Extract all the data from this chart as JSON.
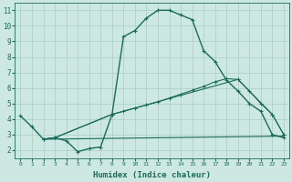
{
  "xlabel": "Humidex (Indice chaleur)",
  "bg_color": "#cce8e0",
  "grid_color": "#aacccc",
  "line_color": "#1a6b5a",
  "xlim": [
    -0.5,
    23.5
  ],
  "ylim": [
    1.5,
    11.5
  ],
  "xticks": [
    0,
    1,
    2,
    3,
    4,
    5,
    6,
    7,
    8,
    9,
    10,
    11,
    12,
    13,
    14,
    15,
    16,
    17,
    18,
    19,
    20,
    21,
    22,
    23
  ],
  "yticks": [
    2,
    3,
    4,
    5,
    6,
    7,
    8,
    9,
    10,
    11
  ],
  "line1_x": [
    0,
    1,
    2,
    3,
    4,
    5,
    6,
    7,
    8,
    9,
    10,
    11,
    12,
    13,
    14,
    15,
    16,
    17,
    18,
    19,
    20,
    21,
    22,
    23
  ],
  "line1_y": [
    4.2,
    3.5,
    2.7,
    2.8,
    2.6,
    1.9,
    2.1,
    2.2,
    4.3,
    9.3,
    9.7,
    10.5,
    11.0,
    11.0,
    10.7,
    10.4,
    8.4,
    7.7,
    6.5,
    5.8,
    5.0,
    4.5,
    3.0,
    2.8
  ],
  "line2_x": [
    2,
    3,
    8,
    9,
    10,
    11,
    12,
    13,
    14,
    15,
    16,
    17,
    18,
    19,
    20,
    21,
    22,
    23
  ],
  "line2_y": [
    2.7,
    2.8,
    4.3,
    4.5,
    4.7,
    4.9,
    5.1,
    5.35,
    5.6,
    5.85,
    6.1,
    6.4,
    6.6,
    6.55,
    5.8,
    5.0,
    4.3,
    3.0
  ],
  "line3_x": [
    2,
    23
  ],
  "line3_y": [
    2.7,
    2.9
  ],
  "line4_x": [
    2,
    3,
    8,
    19,
    22,
    23
  ],
  "line4_y": [
    2.7,
    2.8,
    4.3,
    6.55,
    4.3,
    3.0
  ]
}
